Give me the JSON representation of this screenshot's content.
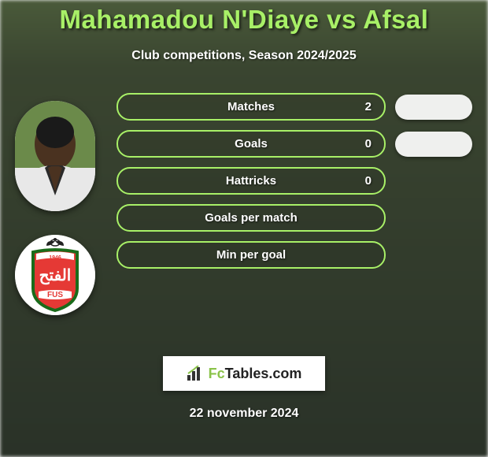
{
  "title": "Mahamadou N'Diaye vs Afsal",
  "subtitle": "Club competitions, Season 2024/2025",
  "footer_date": "22 november 2024",
  "logo": {
    "prefix_icon": "chart-icon",
    "text_fc": "Fc",
    "text_tables": "Tables",
    "text_com": ".com"
  },
  "colors": {
    "title_color": "#a8f067",
    "pill_border": "#a8f067",
    "text_white": "#ffffff",
    "right_pill_bg": "#f3f3f3"
  },
  "stats": [
    {
      "label": "Matches",
      "value": "2",
      "show_right": true
    },
    {
      "label": "Goals",
      "value": "0",
      "show_right": true
    },
    {
      "label": "Hattricks",
      "value": "0",
      "show_right": false
    },
    {
      "label": "Goals per match",
      "value": "",
      "show_right": false
    },
    {
      "label": "Min per goal",
      "value": "",
      "show_right": false
    }
  ],
  "player": {
    "name": "Mahamadou N'Diaye",
    "skin": "#4a3220",
    "jersey_top": "#e8e8e8",
    "jersey_v": "#2a2a2a"
  },
  "club": {
    "name": "FUS",
    "shield_bg": "#e53935",
    "shield_border": "#1a6b1a",
    "top_trim": "#222222",
    "text_color": "#ffffff"
  }
}
